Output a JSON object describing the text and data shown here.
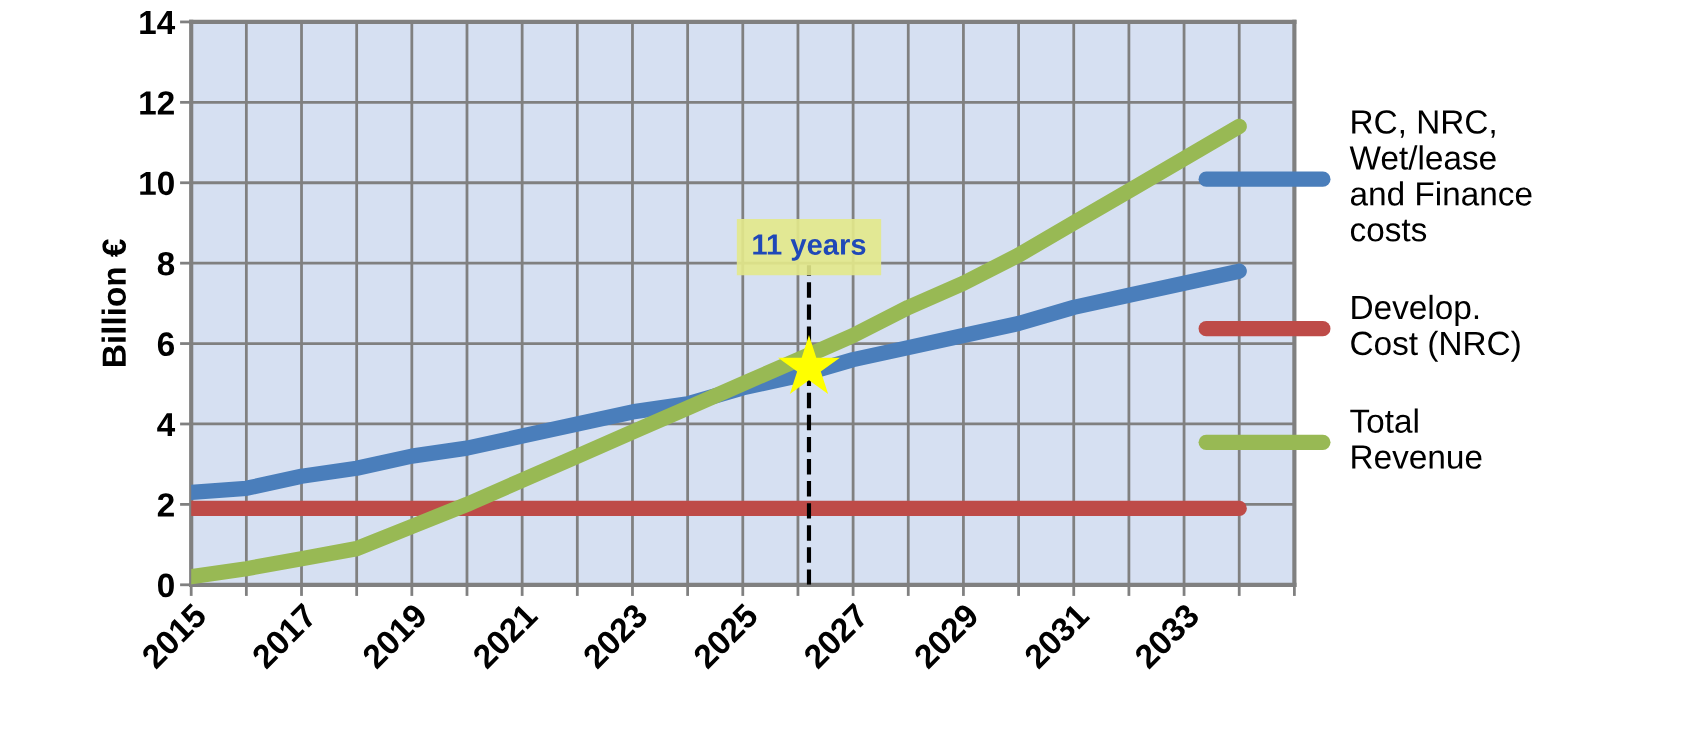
{
  "chart_data": {
    "type": "line",
    "ylabel": "Billion €",
    "x": [
      2015,
      2016,
      2017,
      2018,
      2019,
      2020,
      2021,
      2022,
      2023,
      2024,
      2025,
      2026,
      2027,
      2028,
      2029,
      2030,
      2031,
      2032,
      2033,
      2034
    ],
    "series": [
      {
        "name": "RC, NRC,\nWet/lease\nand Finance\ncosts",
        "color": "#4a7ebb",
        "values": [
          2.3,
          2.4,
          2.7,
          2.9,
          3.2,
          3.4,
          3.7,
          4.0,
          4.3,
          4.5,
          4.9,
          5.2,
          5.6,
          5.9,
          6.2,
          6.5,
          6.9,
          7.2,
          7.5,
          7.8
        ]
      },
      {
        "name": "Develop.\nCost (NRC)",
        "color": "#be4b48",
        "values": [
          1.9,
          1.9,
          1.9,
          1.9,
          1.9,
          1.9,
          1.9,
          1.9,
          1.9,
          1.9,
          1.9,
          1.9,
          1.9,
          1.9,
          1.9,
          1.9,
          1.9,
          1.9,
          1.9,
          1.9
        ]
      },
      {
        "name": "Total\nRevenue",
        "color": "#98b954",
        "values": [
          0.2,
          0.4,
          0.65,
          0.9,
          1.45,
          2.0,
          2.6,
          3.2,
          3.8,
          4.4,
          5.0,
          5.6,
          6.2,
          6.9,
          7.5,
          8.2,
          9.0,
          9.8,
          10.6,
          11.4
        ]
      },
      {
        "type": "scatter",
        "color": "#ffff00",
        "marker": "star",
        "x": [
          2026.2
        ],
        "values": [
          5.4
        ]
      }
    ],
    "xlim": [
      2015,
      2035
    ],
    "xticks": [
      2015,
      {
        "value": 2016,
        "label": null
      },
      2017,
      {
        "value": 2018,
        "label": null
      },
      2019,
      {
        "value": 2020,
        "label": null
      },
      2021,
      {
        "value": 2022,
        "label": null
      },
      2023,
      {
        "value": 2024,
        "label": null
      },
      2025,
      {
        "value": 2026,
        "label": null
      },
      2027,
      {
        "value": 2028,
        "label": null
      },
      2029,
      {
        "value": 2030,
        "label": null
      },
      2031,
      {
        "value": 2032,
        "label": null
      },
      2033,
      {
        "value": 2034,
        "label": null
      },
      {
        "value": 2035,
        "label": null
      }
    ],
    "ylim": [
      0,
      14
    ],
    "yticks": [
      0,
      2,
      4,
      6,
      8,
      10,
      12,
      14
    ],
    "ref_lines": [
      {
        "axis": "x",
        "value": 2026.2,
        "label": "11 years",
        "color": "#000000",
        "line_style": "dashed"
      }
    ],
    "grid": true,
    "legend": "right",
    "marker": "none",
    "line_style": "solid"
  }
}
